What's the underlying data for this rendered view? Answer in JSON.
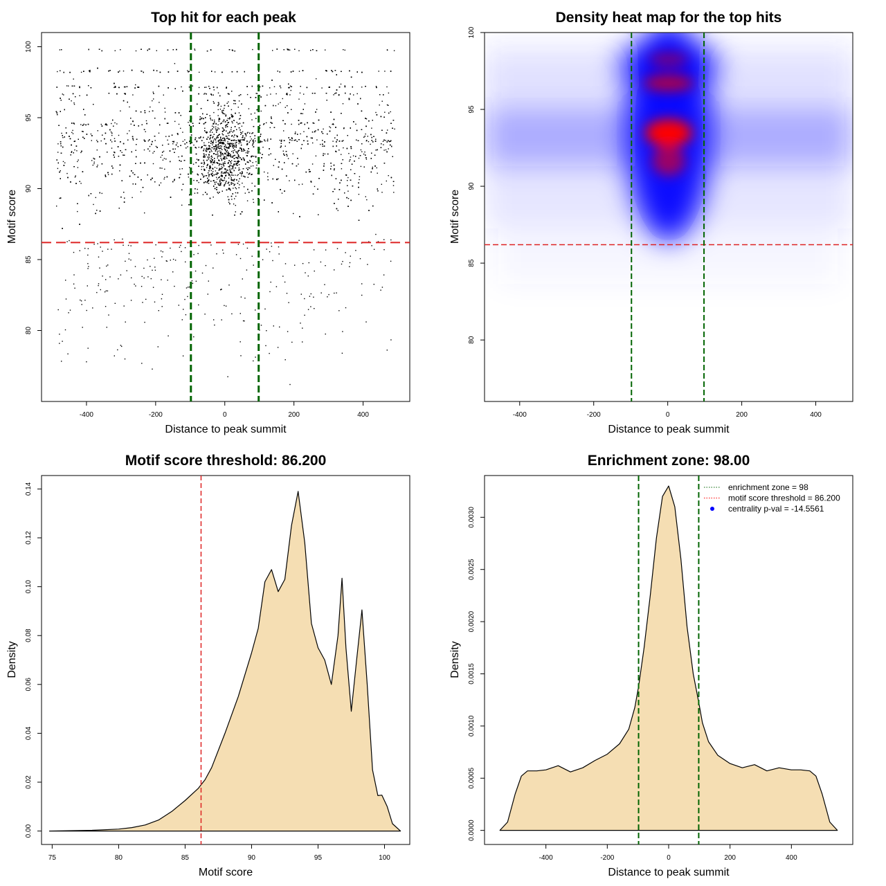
{
  "chart_data": [
    {
      "type": "scatter",
      "title": "Top hit for each peak",
      "xlabel": "Distance to peak summit",
      "ylabel": "Motif score",
      "xlim": [
        -530,
        535
      ],
      "ylim": [
        75,
        101
      ],
      "xticks": [
        -400,
        -200,
        0,
        200,
        400
      ],
      "yticks": [
        80,
        85,
        90,
        95,
        100
      ],
      "lines": {
        "enrichment_lower": -98,
        "enrichment_upper": 98,
        "threshold": 86.2
      },
      "colors": {
        "points": "#000000",
        "enrichment": "#006400",
        "threshold": "#dd2222"
      },
      "point_generation": "dense cloud of several thousand motif hits spanning x -490..490, y 76..100, concentrated near x=0 and y≈93; banded rows at scores 93.5, 96.7, 98.3, 99.8"
    },
    {
      "type": "heatmap",
      "title": "Density heat map for the top hits",
      "xlabel": "Distance to peak summit",
      "ylabel": "Motif score",
      "xlim": [
        -495,
        500
      ],
      "ylim": [
        76,
        100
      ],
      "xticks": [
        -400,
        -200,
        0,
        200,
        400
      ],
      "yticks": [
        80,
        85,
        90,
        95,
        100
      ],
      "lines": {
        "enrichment_lower": -98,
        "enrichment_upper": 98,
        "threshold": 86.2
      },
      "colors": {
        "low": "#ffffff",
        "mid": "#0000ff",
        "high": "#ff0000",
        "enrichment": "#006400",
        "threshold": "#dd2222"
      }
    },
    {
      "type": "area",
      "title": "Motif score threshold: 86.200",
      "xlabel": "Motif score",
      "ylabel": "Density",
      "xlim": [
        74.2,
        101.9
      ],
      "ylim": [
        -0.0055,
        0.1455
      ],
      "xticks": [
        75,
        80,
        85,
        90,
        95,
        100
      ],
      "yticks": [
        0.0,
        0.02,
        0.04,
        0.06,
        0.08,
        0.1,
        0.12,
        0.14
      ],
      "x": [
        74.8,
        78,
        80,
        81,
        82,
        83,
        84,
        85,
        86,
        86.5,
        87,
        88,
        89,
        90,
        90.5,
        91,
        91.5,
        92,
        92.5,
        93,
        93.5,
        94,
        94.5,
        95,
        95.5,
        96,
        96.5,
        96.8,
        97.1,
        97.5,
        97.9,
        98.3,
        98.7,
        99.1,
        99.5,
        99.8,
        100.2,
        100.6,
        101.2
      ],
      "y": [
        0,
        0.0003,
        0.0008,
        0.0014,
        0.0025,
        0.0045,
        0.008,
        0.0125,
        0.0175,
        0.021,
        0.026,
        0.04,
        0.055,
        0.073,
        0.083,
        0.102,
        0.107,
        0.098,
        0.103,
        0.125,
        0.139,
        0.118,
        0.085,
        0.075,
        0.07,
        0.06,
        0.08,
        0.1035,
        0.075,
        0.049,
        0.07,
        0.0905,
        0.06,
        0.025,
        0.0145,
        0.0147,
        0.01,
        0.003,
        0
      ],
      "lines": {
        "threshold": 86.2
      },
      "colors": {
        "fill": "#f5deb3",
        "stroke": "#000000",
        "threshold": "#dd2222"
      }
    },
    {
      "type": "area",
      "title": "Enrichment zone: 98.00",
      "xlabel": "Distance to peak summit",
      "ylabel": "Density",
      "xlim": [
        -600,
        600
      ],
      "ylim": [
        -0.000135,
        0.0034
      ],
      "xticks": [
        -400,
        -200,
        0,
        200,
        400
      ],
      "yticks": [
        0.0,
        0.0005,
        0.001,
        0.0015,
        0.002,
        0.0025,
        0.003
      ],
      "ytick_labels": [
        "0.0000",
        "0.0005",
        "0.0010",
        "0.0015",
        "0.0020",
        "0.0025",
        "0.0030"
      ],
      "x": [
        -550,
        -525,
        -500,
        -480,
        -460,
        -430,
        -400,
        -360,
        -320,
        -280,
        -240,
        -200,
        -160,
        -130,
        -110,
        -98,
        -80,
        -60,
        -40,
        -20,
        0,
        20,
        40,
        60,
        80,
        98,
        110,
        130,
        160,
        200,
        240,
        280,
        320,
        360,
        400,
        430,
        460,
        480,
        500,
        525,
        550
      ],
      "y": [
        0,
        8e-05,
        0.00035,
        0.00052,
        0.00057,
        0.00057,
        0.00058,
        0.00062,
        0.00056,
        0.0006,
        0.00067,
        0.00073,
        0.00083,
        0.00097,
        0.00118,
        0.00138,
        0.00175,
        0.00225,
        0.0028,
        0.0032,
        0.0033,
        0.0031,
        0.0026,
        0.00195,
        0.0015,
        0.00123,
        0.00103,
        0.00085,
        0.00072,
        0.00064,
        0.0006,
        0.00063,
        0.00057,
        0.0006,
        0.00058,
        0.00058,
        0.00057,
        0.00052,
        0.00035,
        8e-05,
        0
      ],
      "lines": {
        "enrichment_lower": -98,
        "enrichment_upper": 98
      },
      "legend": {
        "position": "top-right",
        "entries": [
          {
            "label": "enrichment zone = 98",
            "style": "dotted",
            "color": "#006400"
          },
          {
            "label": "motif score threshold = 86.200",
            "style": "dotted",
            "color": "#ff0000"
          },
          {
            "label": "centrality p-val = -14.5561",
            "style": "point",
            "color": "#0000ff"
          }
        ]
      },
      "colors": {
        "fill": "#f5deb3",
        "stroke": "#000000",
        "enrichment": "#006400"
      }
    }
  ]
}
